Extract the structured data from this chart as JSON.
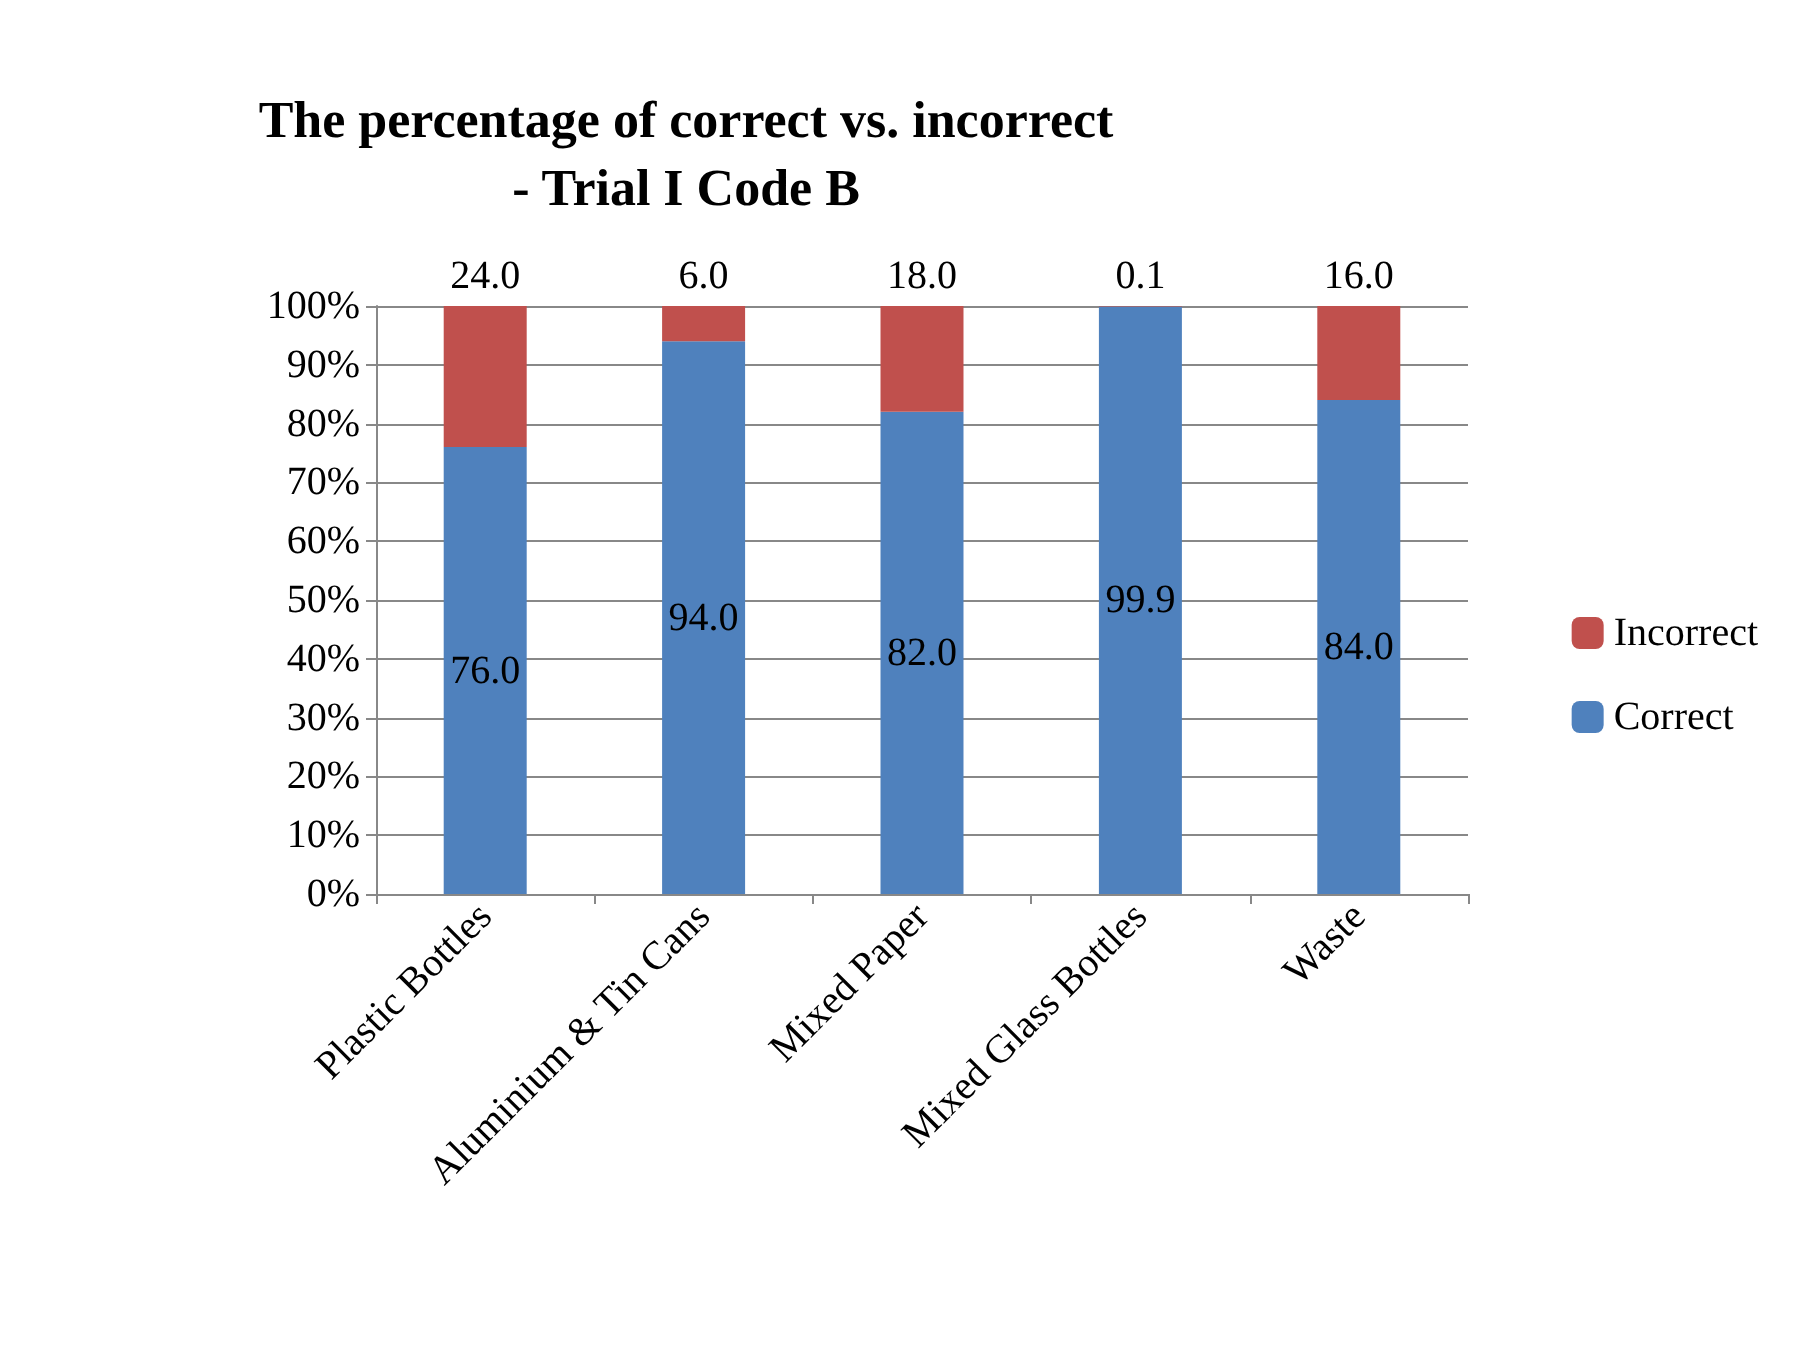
{
  "chart_data": {
    "type": "bar",
    "title": "The percentage of correct vs. incorrect\n- Trial I Code B",
    "categories": [
      "Plastic Bottles",
      "Aluminium & Tin Cans",
      "Mixed Paper",
      "Mixed Glass Bottles",
      "Waste"
    ],
    "stacked": true,
    "series": [
      {
        "name": "Correct",
        "color": "#4f81bd",
        "values": [
          76,
          94,
          82,
          99.9,
          84
        ],
        "value_labels": [
          "76.0",
          "94.0",
          "82.0",
          "99.9",
          "84.0"
        ]
      },
      {
        "name": "Incorrect",
        "color": "#c0504d",
        "values": [
          24,
          6,
          18,
          0.1,
          16
        ],
        "value_labels": [
          "24.0",
          "6.0",
          "18.0",
          "0.1",
          "16.0"
        ]
      }
    ],
    "ylim": [
      0,
      100
    ],
    "yticks": [
      {
        "value": 0,
        "label": "0%"
      },
      {
        "value": 10,
        "label": "10%"
      },
      {
        "value": 20,
        "label": "20%"
      },
      {
        "value": 30,
        "label": "30%"
      },
      {
        "value": 40,
        "label": "40%"
      },
      {
        "value": 50,
        "label": "50%"
      },
      {
        "value": 60,
        "label": "60%"
      },
      {
        "value": 70,
        "label": "70%"
      },
      {
        "value": 80,
        "label": "80%"
      },
      {
        "value": 90,
        "label": "90%"
      },
      {
        "value": 100,
        "label": "100%"
      }
    ],
    "grid": "y",
    "legend": "right"
  }
}
